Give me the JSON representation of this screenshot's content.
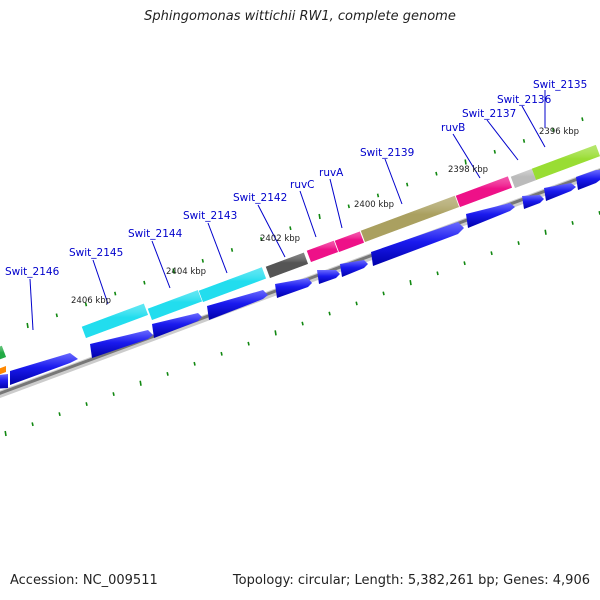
{
  "title": "Sphingomonas wittichii RW1, complete genome",
  "footer": {
    "accession_text": "Accession: NC_009511",
    "summary_text": "Topology: circular; Length: 5,382,261 bp; Genes: 4,906"
  },
  "scale_labels": [
    "2396 kbp",
    "2398 kbp",
    "2400 kbp",
    "2402 kbp",
    "2404 kbp",
    "2406 kbp"
  ],
  "genes": [
    {
      "name": "Swit_2135",
      "feature_color": "#99dd33"
    },
    {
      "name": "Swit_2136",
      "feature_color": "#bbbbbb"
    },
    {
      "name": "Swit_2137",
      "feature_color": "#bbbbbb"
    },
    {
      "name": "ruvB",
      "feature_color": "#ee1188"
    },
    {
      "name": "Swit_2139",
      "feature_color": "#aaa060"
    },
    {
      "name": "ruvA",
      "feature_color": "#ee1188"
    },
    {
      "name": "ruvC",
      "feature_color": "#ee1188"
    },
    {
      "name": "Swit_2142",
      "feature_color": "#555555"
    },
    {
      "name": "Swit_2143",
      "feature_color": "#22ddee"
    },
    {
      "name": "Swit_2144",
      "feature_color": "#22ddee"
    },
    {
      "name": "Swit_2145",
      "feature_color": "#22ddee"
    },
    {
      "name": "Swit_2146",
      "feature_color": "#22aa44"
    }
  ],
  "colors": {
    "cds_arrow": "#1a1aee",
    "backbone": "#888888",
    "tick": "#118811",
    "label_line": "#0000cc"
  }
}
